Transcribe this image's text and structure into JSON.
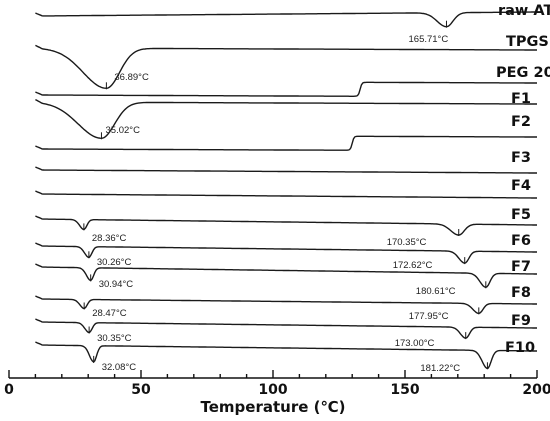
{
  "chart_data": {
    "type": "line",
    "xlabel": "Temperature (℃)",
    "xlim": [
      0,
      200
    ],
    "xticks": [
      0,
      50,
      100,
      150,
      200
    ],
    "ylabel": "",
    "grid": false,
    "series": [
      {
        "name": "raw ATR",
        "peaks": [
          {
            "t": 165.71,
            "label": "165.71°C"
          }
        ],
        "steps": []
      },
      {
        "name": "TPGS",
        "peaks": [
          {
            "t": 36.89,
            "label": "36.89°C"
          }
        ],
        "steps": []
      },
      {
        "name": "PEG 200",
        "peaks": [],
        "steps": [
          {
            "t": 133
          }
        ]
      },
      {
        "name": "F1",
        "peaks": [
          {
            "t": 35.02,
            "label": "35.02°C"
          }
        ],
        "steps": []
      },
      {
        "name": "F2",
        "peaks": [],
        "steps": [
          {
            "t": 130
          }
        ]
      },
      {
        "name": "F3",
        "peaks": [],
        "steps": []
      },
      {
        "name": "F4",
        "peaks": [],
        "steps": []
      },
      {
        "name": "F5",
        "peaks": [
          {
            "t": 28.36,
            "label": "28.36°C"
          },
          {
            "t": 170.35,
            "label": "170.35°C"
          }
        ],
        "steps": []
      },
      {
        "name": "F6",
        "peaks": [
          {
            "t": 30.26,
            "label": "30.26°C"
          },
          {
            "t": 172.62,
            "label": "172.62°C"
          }
        ],
        "steps": []
      },
      {
        "name": "F7",
        "peaks": [
          {
            "t": 30.94,
            "label": "30.94°C"
          },
          {
            "t": 180.61,
            "label": "180.61°C"
          }
        ],
        "steps": []
      },
      {
        "name": "F8",
        "peaks": [
          {
            "t": 28.47,
            "label": "28.47°C"
          },
          {
            "t": 177.95,
            "label": "177.95°C"
          }
        ],
        "steps": []
      },
      {
        "name": "F9",
        "peaks": [
          {
            "t": 30.35,
            "label": "30.35°C"
          },
          {
            "t": 173.0,
            "label": "173.00°C"
          }
        ],
        "steps": []
      },
      {
        "name": "F10",
        "peaks": [
          {
            "t": 32.08,
            "label": "32.08°C"
          },
          {
            "t": 181.22,
            "label": "181.22°C"
          }
        ],
        "steps": []
      }
    ]
  }
}
